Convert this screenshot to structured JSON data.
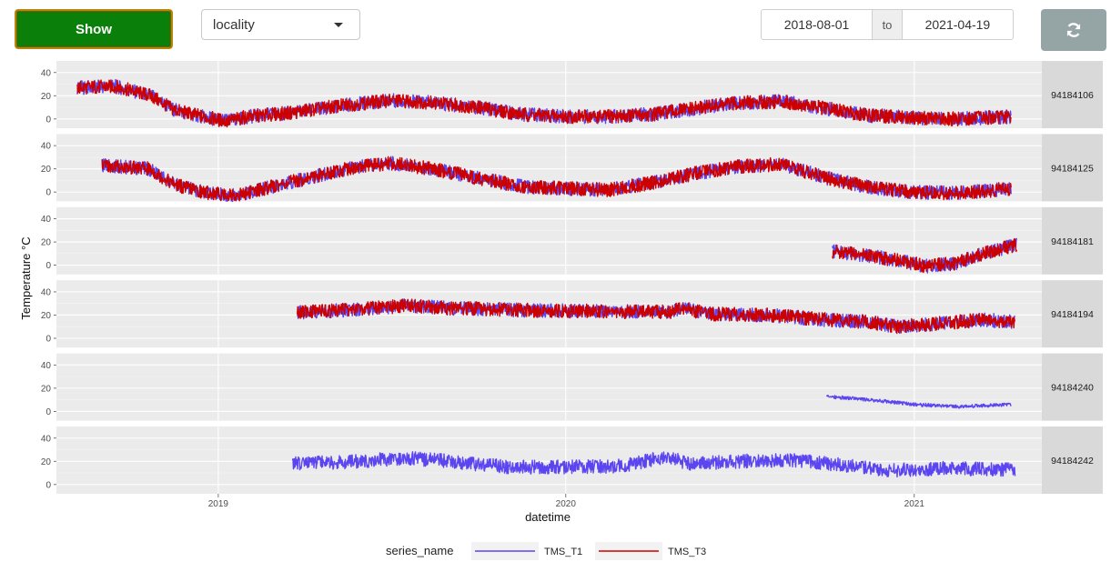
{
  "controls": {
    "show_label": "Show",
    "select_value": "locality",
    "date_from": "2018-08-01",
    "date_sep": "to",
    "date_to": "2021-04-19",
    "refresh_icon": "refresh-icon"
  },
  "chart_data": {
    "type": "line",
    "xlabel": "datetime",
    "ylabel": "Temperature °C",
    "x_ticks": [
      "2019",
      "2020",
      "2021"
    ],
    "y_ticks": [
      0,
      20,
      40
    ],
    "ylim": [
      -8,
      50
    ],
    "xlim": [
      "2018-07-15",
      "2021-05-15"
    ],
    "grid": true,
    "legend": {
      "position": "bottom",
      "title": "series_name",
      "items": [
        {
          "name": "TMS_T1",
          "color": "#5b45f0"
        },
        {
          "name": "TMS_T3",
          "color": "#cc0000"
        }
      ]
    },
    "panels": [
      {
        "label": "94184106",
        "series": [
          {
            "name": "TMS_T1",
            "color": "#5b45f0",
            "start": "2018-08-06",
            "end": "2021-04-13",
            "points": [
              [
                "2018-08-06",
                27
              ],
              [
                "2018-09-15",
                28
              ],
              [
                "2018-10-22",
                20
              ],
              [
                "2018-11-15",
                8
              ],
              [
                "2018-12-15",
                2
              ],
              [
                "2019-01-10",
                -2
              ],
              [
                "2019-02-01",
                2
              ],
              [
                "2019-03-15",
                5
              ],
              [
                "2019-05-15",
                12
              ],
              [
                "2019-07-01",
                16
              ],
              [
                "2019-08-15",
                14
              ],
              [
                "2019-10-01",
                10
              ],
              [
                "2019-11-15",
                4
              ],
              [
                "2020-01-01",
                2
              ],
              [
                "2020-02-15",
                2
              ],
              [
                "2020-04-01",
                4
              ],
              [
                "2020-05-15",
                9
              ],
              [
                "2020-07-01",
                14
              ],
              [
                "2020-08-15",
                15
              ],
              [
                "2020-10-01",
                9
              ],
              [
                "2020-11-15",
                3
              ],
              [
                "2021-01-01",
                1
              ],
              [
                "2021-02-15",
                0
              ],
              [
                "2021-04-13",
                2
              ]
            ]
          },
          {
            "name": "TMS_T3",
            "color": "#cc0000",
            "start": "2018-08-06",
            "end": "2021-04-13",
            "points": [
              [
                "2018-08-06",
                27
              ],
              [
                "2018-09-15",
                28
              ],
              [
                "2018-10-22",
                20
              ],
              [
                "2018-11-15",
                8
              ],
              [
                "2018-12-15",
                2
              ],
              [
                "2019-01-10",
                -2
              ],
              [
                "2019-02-01",
                2
              ],
              [
                "2019-03-15",
                5
              ],
              [
                "2019-05-15",
                12
              ],
              [
                "2019-07-01",
                16
              ],
              [
                "2019-08-15",
                14
              ],
              [
                "2019-10-01",
                10
              ],
              [
                "2019-11-15",
                4
              ],
              [
                "2020-01-01",
                2
              ],
              [
                "2020-02-15",
                2
              ],
              [
                "2020-04-01",
                4
              ],
              [
                "2020-05-15",
                9
              ],
              [
                "2020-07-01",
                14
              ],
              [
                "2020-08-15",
                15
              ],
              [
                "2020-10-01",
                9
              ],
              [
                "2020-11-15",
                3
              ],
              [
                "2021-01-01",
                1
              ],
              [
                "2021-02-15",
                0
              ],
              [
                "2021-04-13",
                2
              ]
            ]
          }
        ]
      },
      {
        "label": "94184125",
        "series": [
          {
            "name": "TMS_T1",
            "color": "#5b45f0",
            "start": "2018-09-01",
            "end": "2021-04-13",
            "points": [
              [
                "2018-09-01",
                23
              ],
              [
                "2018-10-20",
                20
              ],
              [
                "2018-11-15",
                7
              ],
              [
                "2018-12-15",
                0
              ],
              [
                "2019-01-20",
                -3
              ],
              [
                "2019-03-15",
                8
              ],
              [
                "2019-05-15",
                20
              ],
              [
                "2019-07-01",
                25
              ],
              [
                "2019-08-15",
                20
              ],
              [
                "2019-10-01",
                12
              ],
              [
                "2019-11-15",
                5
              ],
              [
                "2020-01-01",
                3
              ],
              [
                "2020-02-15",
                2
              ],
              [
                "2020-04-01",
                8
              ],
              [
                "2020-05-15",
                16
              ],
              [
                "2020-07-01",
                22
              ],
              [
                "2020-08-15",
                24
              ],
              [
                "2020-10-01",
                12
              ],
              [
                "2020-11-15",
                4
              ],
              [
                "2021-01-01",
                0
              ],
              [
                "2021-02-15",
                -1
              ],
              [
                "2021-04-13",
                3
              ]
            ]
          },
          {
            "name": "TMS_T3",
            "color": "#cc0000",
            "start": "2018-09-01",
            "end": "2021-04-13",
            "points": [
              [
                "2018-09-01",
                23
              ],
              [
                "2018-10-20",
                20
              ],
              [
                "2018-11-15",
                7
              ],
              [
                "2018-12-15",
                0
              ],
              [
                "2019-01-20",
                -3
              ],
              [
                "2019-03-15",
                8
              ],
              [
                "2019-05-15",
                20
              ],
              [
                "2019-07-01",
                25
              ],
              [
                "2019-08-15",
                20
              ],
              [
                "2019-10-01",
                12
              ],
              [
                "2019-11-15",
                5
              ],
              [
                "2020-01-01",
                3
              ],
              [
                "2020-02-15",
                2
              ],
              [
                "2020-04-01",
                8
              ],
              [
                "2020-05-15",
                16
              ],
              [
                "2020-07-01",
                22
              ],
              [
                "2020-08-15",
                24
              ],
              [
                "2020-10-01",
                12
              ],
              [
                "2020-11-15",
                4
              ],
              [
                "2021-01-01",
                0
              ],
              [
                "2021-02-15",
                -1
              ],
              [
                "2021-04-13",
                3
              ]
            ]
          }
        ]
      },
      {
        "label": "94184181",
        "series": [
          {
            "name": "TMS_T1",
            "color": "#5b45f0",
            "start": "2020-10-07",
            "end": "2021-04-19",
            "points": [
              [
                "2020-10-07",
                12
              ],
              [
                "2020-11-15",
                8
              ],
              [
                "2020-12-15",
                4
              ],
              [
                "2021-01-15",
                -1
              ],
              [
                "2021-02-15",
                2
              ],
              [
                "2021-03-15",
                10
              ],
              [
                "2021-04-19",
                18
              ]
            ]
          },
          {
            "name": "TMS_T3",
            "color": "#cc0000",
            "start": "2020-10-07",
            "end": "2021-04-19",
            "points": [
              [
                "2020-10-07",
                12
              ],
              [
                "2020-11-15",
                8
              ],
              [
                "2020-12-15",
                4
              ],
              [
                "2021-01-15",
                -1
              ],
              [
                "2021-02-15",
                2
              ],
              [
                "2021-03-15",
                10
              ],
              [
                "2021-04-19",
                18
              ]
            ]
          }
        ]
      },
      {
        "label": "94184194",
        "series": [
          {
            "name": "TMS_T1",
            "color": "#5b45f0",
            "start": "2019-03-25",
            "end": "2021-04-17",
            "points": [
              [
                "2019-03-25",
                22
              ],
              [
                "2019-06-01",
                25
              ],
              [
                "2019-07-15",
                28
              ],
              [
                "2019-09-01",
                26
              ],
              [
                "2019-12-01",
                24
              ],
              [
                "2020-03-01",
                23
              ],
              [
                "2020-04-20",
                23
              ],
              [
                "2020-05-01",
                26
              ],
              [
                "2020-06-01",
                21
              ],
              [
                "2020-08-01",
                20
              ],
              [
                "2020-10-01",
                16
              ],
              [
                "2020-11-15",
                14
              ],
              [
                "2020-12-15",
                10
              ],
              [
                "2021-01-15",
                12
              ],
              [
                "2021-03-15",
                16
              ],
              [
                "2021-04-17",
                14
              ]
            ]
          },
          {
            "name": "TMS_T3",
            "color": "#cc0000",
            "start": "2019-03-25",
            "end": "2021-04-17",
            "points": [
              [
                "2019-03-25",
                22
              ],
              [
                "2019-06-01",
                25
              ],
              [
                "2019-07-15",
                28
              ],
              [
                "2019-09-01",
                26
              ],
              [
                "2019-12-01",
                24
              ],
              [
                "2020-03-01",
                23
              ],
              [
                "2020-04-20",
                23
              ],
              [
                "2020-05-01",
                26
              ],
              [
                "2020-06-01",
                21
              ],
              [
                "2020-08-01",
                20
              ],
              [
                "2020-10-01",
                16
              ],
              [
                "2020-11-15",
                14
              ],
              [
                "2020-12-15",
                10
              ],
              [
                "2021-01-15",
                12
              ],
              [
                "2021-03-15",
                16
              ],
              [
                "2021-04-17",
                14
              ]
            ]
          }
        ]
      },
      {
        "label": "94184240",
        "series": [
          {
            "name": "TMS_T1",
            "color": "#5b45f0",
            "start": "2020-10-01",
            "end": "2021-04-13",
            "points": [
              [
                "2020-10-01",
                13
              ],
              [
                "2020-11-15",
                10
              ],
              [
                "2021-01-01",
                6
              ],
              [
                "2021-02-15",
                4
              ],
              [
                "2021-04-13",
                6
              ]
            ]
          }
        ]
      },
      {
        "label": "94184242",
        "series": [
          {
            "name": "TMS_T1",
            "color": "#5b45f0",
            "start": "2019-03-20",
            "end": "2021-04-17",
            "points": [
              [
                "2019-03-20",
                18
              ],
              [
                "2019-06-01",
                20
              ],
              [
                "2019-07-15",
                23
              ],
              [
                "2019-09-01",
                20
              ],
              [
                "2019-11-01",
                15
              ],
              [
                "2020-01-01",
                15
              ],
              [
                "2020-03-01",
                16
              ],
              [
                "2020-04-15",
                24
              ],
              [
                "2020-05-10",
                18
              ],
              [
                "2020-07-01",
                20
              ],
              [
                "2020-09-01",
                21
              ],
              [
                "2020-10-15",
                17
              ],
              [
                "2020-12-01",
                12
              ],
              [
                "2021-02-01",
                14
              ],
              [
                "2021-04-17",
                13
              ]
            ]
          }
        ]
      }
    ]
  }
}
